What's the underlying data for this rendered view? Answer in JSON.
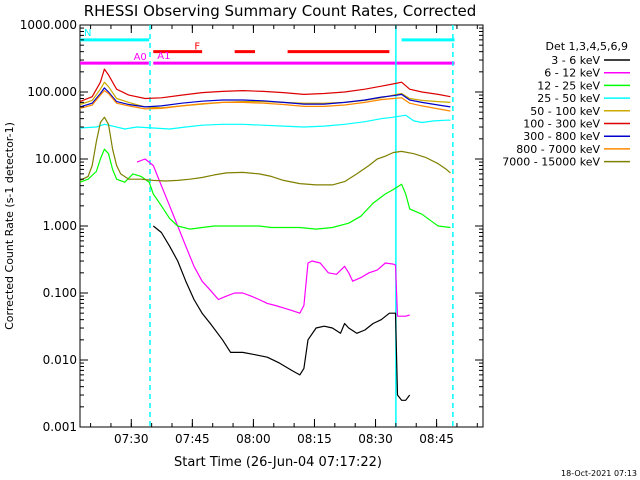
{
  "chart_data": {
    "type": "line",
    "title": "RHESSI Observing Summary Count Rates, Corrected",
    "xlabel": "Start Time (26-Jun-04 07:17:22)",
    "ylabel": "Corrected Count Rate (s-1 detector-1)",
    "yscale": "log",
    "ylim": [
      0.001,
      1000
    ],
    "xlim_minutes": [
      0,
      99
    ],
    "y_ticks": [
      {
        "value": 1000,
        "label": "1000.000"
      },
      {
        "value": 100,
        "label": "100.000"
      },
      {
        "value": 10,
        "label": "10.000"
      },
      {
        "value": 1,
        "label": "1.000"
      },
      {
        "value": 0.1,
        "label": "0.100"
      },
      {
        "value": 0.01,
        "label": "0.010"
      },
      {
        "value": 0.001,
        "label": "0.001"
      }
    ],
    "x_ticks": [
      {
        "minute": 12.6,
        "label": "07:30"
      },
      {
        "minute": 27.6,
        "label": "07:45"
      },
      {
        "minute": 42.6,
        "label": "08:00"
      },
      {
        "minute": 57.6,
        "label": "08:15"
      },
      {
        "minute": 72.6,
        "label": "08:30"
      },
      {
        "minute": 87.6,
        "label": "08:45"
      }
    ],
    "legend_title": "Det 1,3,4,5,6,9",
    "series": [
      {
        "name": "3 - 6 keV",
        "color": "#000000",
        "points": [
          [
            18,
            1.0
          ],
          [
            20,
            0.8
          ],
          [
            22,
            0.5
          ],
          [
            24,
            0.3
          ],
          [
            26,
            0.15
          ],
          [
            28,
            0.08
          ],
          [
            30,
            0.05
          ],
          [
            32,
            0.035
          ],
          [
            35,
            0.02
          ],
          [
            37,
            0.013
          ],
          [
            40,
            0.013
          ],
          [
            43,
            0.012
          ],
          [
            46,
            0.011
          ],
          [
            49,
            0.009
          ],
          [
            52,
            0.007
          ],
          [
            54,
            0.006
          ],
          [
            55,
            0.0075
          ],
          [
            56,
            0.02
          ],
          [
            58,
            0.03
          ],
          [
            60,
            0.032
          ],
          [
            62,
            0.03
          ],
          [
            64,
            0.025
          ],
          [
            65,
            0.035
          ],
          [
            66,
            0.03
          ],
          [
            68,
            0.025
          ],
          [
            70,
            0.028
          ],
          [
            72,
            0.035
          ],
          [
            74,
            0.04
          ],
          [
            76,
            0.05
          ],
          [
            77.5,
            0.05
          ],
          [
            78,
            0.003
          ],
          [
            79,
            0.0025
          ],
          [
            80,
            0.0025
          ],
          [
            81,
            0.003
          ]
        ]
      },
      {
        "name": "6 - 12 keV",
        "color": "#ff00ff",
        "points": [
          [
            14,
            9
          ],
          [
            16,
            10
          ],
          [
            18,
            8
          ],
          [
            20,
            4
          ],
          [
            22,
            2
          ],
          [
            24,
            1
          ],
          [
            26,
            0.5
          ],
          [
            28,
            0.25
          ],
          [
            30,
            0.15
          ],
          [
            32,
            0.11
          ],
          [
            34,
            0.08
          ],
          [
            36,
            0.09
          ],
          [
            38,
            0.1
          ],
          [
            40,
            0.1
          ],
          [
            42,
            0.09
          ],
          [
            44,
            0.08
          ],
          [
            46,
            0.07
          ],
          [
            48,
            0.065
          ],
          [
            50,
            0.06
          ],
          [
            52,
            0.055
          ],
          [
            54,
            0.05
          ],
          [
            55,
            0.065
          ],
          [
            56,
            0.28
          ],
          [
            57,
            0.3
          ],
          [
            59,
            0.28
          ],
          [
            61,
            0.2
          ],
          [
            63,
            0.19
          ],
          [
            65,
            0.25
          ],
          [
            66,
            0.2
          ],
          [
            67,
            0.15
          ],
          [
            69,
            0.17
          ],
          [
            71,
            0.2
          ],
          [
            73,
            0.22
          ],
          [
            75,
            0.28
          ],
          [
            77,
            0.27
          ],
          [
            77.5,
            0.26
          ],
          [
            78,
            0.045
          ],
          [
            80,
            0.045
          ],
          [
            81,
            0.047
          ]
        ]
      },
      {
        "name": "12 - 25 keV",
        "color": "#00ff00",
        "points": [
          [
            0,
            4.5
          ],
          [
            2,
            5
          ],
          [
            4,
            6.5
          ],
          [
            5,
            10
          ],
          [
            6,
            14
          ],
          [
            7,
            12
          ],
          [
            8,
            7
          ],
          [
            9,
            5
          ],
          [
            11,
            4.5
          ],
          [
            13,
            6
          ],
          [
            15,
            5.5
          ],
          [
            17,
            4.5
          ],
          [
            18,
            3
          ],
          [
            20,
            2
          ],
          [
            22,
            1.3
          ],
          [
            24,
            1
          ],
          [
            27,
            0.9
          ],
          [
            30,
            0.95
          ],
          [
            33,
            1.0
          ],
          [
            36,
            1.0
          ],
          [
            40,
            1.0
          ],
          [
            44,
            1.0
          ],
          [
            47,
            0.95
          ],
          [
            50,
            0.95
          ],
          [
            54,
            0.95
          ],
          [
            58,
            0.9
          ],
          [
            62,
            0.95
          ],
          [
            66,
            1.1
          ],
          [
            69,
            1.4
          ],
          [
            72,
            2.2
          ],
          [
            75,
            3
          ],
          [
            77,
            3.5
          ],
          [
            79,
            4.2
          ],
          [
            80,
            3
          ],
          [
            81,
            1.8
          ],
          [
            84,
            1.5
          ],
          [
            87,
            1.1
          ],
          [
            88,
            1.0
          ],
          [
            91,
            0.95
          ]
        ]
      },
      {
        "name": "25 - 50 keV",
        "color": "#00ffff",
        "points": [
          [
            0,
            29
          ],
          [
            4,
            30
          ],
          [
            6,
            33
          ],
          [
            8,
            31
          ],
          [
            11,
            28
          ],
          [
            14,
            30
          ],
          [
            18,
            29
          ],
          [
            22,
            28
          ],
          [
            26,
            30
          ],
          [
            30,
            32
          ],
          [
            35,
            33
          ],
          [
            40,
            33
          ],
          [
            45,
            32
          ],
          [
            50,
            31
          ],
          [
            55,
            30
          ],
          [
            60,
            31
          ],
          [
            65,
            33
          ],
          [
            70,
            36
          ],
          [
            74,
            40
          ],
          [
            77,
            42
          ],
          [
            80,
            45
          ],
          [
            82,
            37
          ],
          [
            84,
            35
          ],
          [
            87,
            37
          ],
          [
            90,
            38
          ],
          [
            91,
            38
          ]
        ]
      },
      {
        "name": "50 - 100 keV",
        "color": "#ccaa00",
        "points": [
          [
            0,
            65
          ],
          [
            3,
            75
          ],
          [
            5,
            110
          ],
          [
            6,
            140
          ],
          [
            7,
            120
          ],
          [
            9,
            80
          ],
          [
            12,
            70
          ],
          [
            16,
            60
          ],
          [
            20,
            58
          ],
          [
            25,
            62
          ],
          [
            30,
            66
          ],
          [
            35,
            70
          ],
          [
            40,
            72
          ],
          [
            45,
            72
          ],
          [
            50,
            70
          ],
          [
            55,
            68
          ],
          [
            60,
            68
          ],
          [
            65,
            70
          ],
          [
            70,
            75
          ],
          [
            74,
            82
          ],
          [
            77,
            90
          ],
          [
            79,
            95
          ],
          [
            81,
            80
          ],
          [
            84,
            75
          ],
          [
            88,
            72
          ],
          [
            91,
            70
          ]
        ]
      },
      {
        "name": "100 - 300 keV",
        "color": "#dd0000",
        "points": [
          [
            0,
            72
          ],
          [
            3,
            85
          ],
          [
            5,
            140
          ],
          [
            6,
            220
          ],
          [
            7,
            180
          ],
          [
            9,
            110
          ],
          [
            12,
            90
          ],
          [
            16,
            80
          ],
          [
            20,
            82
          ],
          [
            25,
            90
          ],
          [
            30,
            98
          ],
          [
            35,
            102
          ],
          [
            40,
            105
          ],
          [
            45,
            102
          ],
          [
            50,
            98
          ],
          [
            55,
            92
          ],
          [
            60,
            95
          ],
          [
            65,
            100
          ],
          [
            70,
            110
          ],
          [
            74,
            122
          ],
          [
            77,
            132
          ],
          [
            79,
            140
          ],
          [
            81,
            110
          ],
          [
            84,
            100
          ],
          [
            88,
            92
          ],
          [
            91,
            85
          ]
        ]
      },
      {
        "name": "300 - 800 keV",
        "color": "#0000cc",
        "points": [
          [
            0,
            60
          ],
          [
            3,
            68
          ],
          [
            5,
            95
          ],
          [
            6,
            115
          ],
          [
            7,
            100
          ],
          [
            9,
            72
          ],
          [
            12,
            65
          ],
          [
            16,
            60
          ],
          [
            20,
            62
          ],
          [
            25,
            68
          ],
          [
            30,
            73
          ],
          [
            35,
            76
          ],
          [
            40,
            76
          ],
          [
            45,
            74
          ],
          [
            50,
            70
          ],
          [
            55,
            66
          ],
          [
            60,
            66
          ],
          [
            65,
            70
          ],
          [
            70,
            76
          ],
          [
            74,
            84
          ],
          [
            77,
            88
          ],
          [
            79,
            92
          ],
          [
            81,
            76
          ],
          [
            84,
            70
          ],
          [
            88,
            64
          ],
          [
            91,
            60
          ]
        ]
      },
      {
        "name": "800 - 7000 keV",
        "color": "#ff8800",
        "points": [
          [
            0,
            57
          ],
          [
            3,
            64
          ],
          [
            5,
            90
          ],
          [
            6,
            105
          ],
          [
            7,
            95
          ],
          [
            9,
            68
          ],
          [
            12,
            62
          ],
          [
            16,
            56
          ],
          [
            20,
            57
          ],
          [
            25,
            62
          ],
          [
            30,
            67
          ],
          [
            35,
            70
          ],
          [
            40,
            70
          ],
          [
            45,
            68
          ],
          [
            50,
            65
          ],
          [
            55,
            61
          ],
          [
            60,
            61
          ],
          [
            65,
            64
          ],
          [
            70,
            70
          ],
          [
            74,
            77
          ],
          [
            77,
            80
          ],
          [
            79,
            82
          ],
          [
            81,
            68
          ],
          [
            84,
            62
          ],
          [
            88,
            56
          ],
          [
            91,
            52
          ]
        ]
      },
      {
        "name": "7000 - 15000 keV",
        "color": "#808000",
        "points": [
          [
            0,
            4.8
          ],
          [
            2,
            5.5
          ],
          [
            3,
            8
          ],
          [
            4,
            18
          ],
          [
            5,
            35
          ],
          [
            6,
            42
          ],
          [
            7,
            33
          ],
          [
            8,
            14
          ],
          [
            9,
            8
          ],
          [
            10,
            6
          ],
          [
            12,
            5
          ],
          [
            15,
            5
          ],
          [
            18,
            4.8
          ],
          [
            21,
            4.7
          ],
          [
            24,
            4.8
          ],
          [
            27,
            5
          ],
          [
            30,
            5.3
          ],
          [
            33,
            5.8
          ],
          [
            36,
            6.2
          ],
          [
            40,
            6.3
          ],
          [
            44,
            6
          ],
          [
            47,
            5.5
          ],
          [
            50,
            4.8
          ],
          [
            54,
            4.3
          ],
          [
            58,
            4.1
          ],
          [
            62,
            4.1
          ],
          [
            65,
            4.6
          ],
          [
            68,
            6
          ],
          [
            71,
            8
          ],
          [
            73,
            10
          ],
          [
            75,
            11
          ],
          [
            77,
            12.5
          ],
          [
            79,
            13
          ],
          [
            82,
            12
          ],
          [
            85,
            10.5
          ],
          [
            88,
            8.5
          ],
          [
            90,
            7
          ],
          [
            91,
            6.2
          ]
        ]
      }
    ],
    "flag_lines": [
      {
        "label": "N",
        "color": "#00ffff",
        "y_value": 600,
        "segments": [
          [
            0,
            17
          ],
          [
            79,
            92
          ]
        ]
      },
      {
        "label": "F",
        "color": "#ff0000",
        "y_value": 400,
        "segments": [
          [
            18,
            30
          ],
          [
            38,
            43
          ],
          [
            51,
            76
          ]
        ]
      },
      {
        "label": "A0",
        "color": "#ff00ff",
        "y_value": 270,
        "segments": [
          [
            0,
            16.9
          ]
        ]
      },
      {
        "label": "A1",
        "color": "#ff00ff",
        "y_value": 270,
        "segments": [
          [
            18,
            92
          ]
        ]
      }
    ],
    "vertical_lines": [
      {
        "minute": 17.2,
        "style": "dashed",
        "color": "#00ffff"
      },
      {
        "minute": 77.6,
        "style": "solid",
        "color": "#00ffff"
      },
      {
        "minute": 91.6,
        "style": "dashed",
        "color": "#00ffff"
      }
    ],
    "footer": "18-Oct-2021 07:13"
  }
}
